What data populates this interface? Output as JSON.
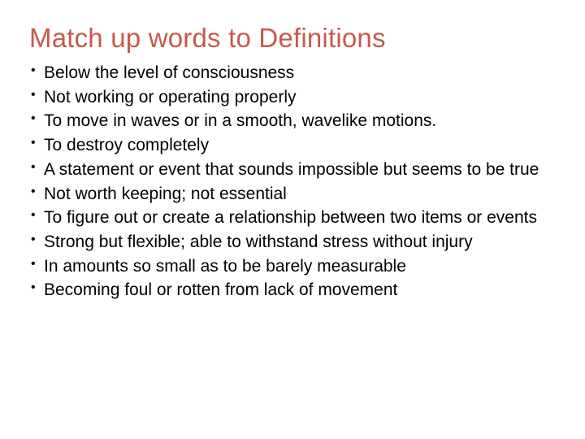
{
  "slide": {
    "title": "Match up words to Definitions",
    "title_color": "#c55a4b",
    "title_fontsize": 33,
    "body_fontsize": 21,
    "body_color": "#000000",
    "background_color": "#ffffff",
    "bullets": [
      "Below the level of consciousness",
      "Not working or operating properly",
      "To move in waves or in a smooth, wavelike motions.",
      "To destroy completely",
      "A statement or event that sounds impossible but seems to be true",
      "Not worth keeping; not essential",
      "To figure out or create a relationship between two items or events",
      "Strong but flexible; able to withstand stress without injury",
      "In amounts so small as to be barely measurable",
      "Becoming foul or rotten from lack of movement"
    ]
  }
}
